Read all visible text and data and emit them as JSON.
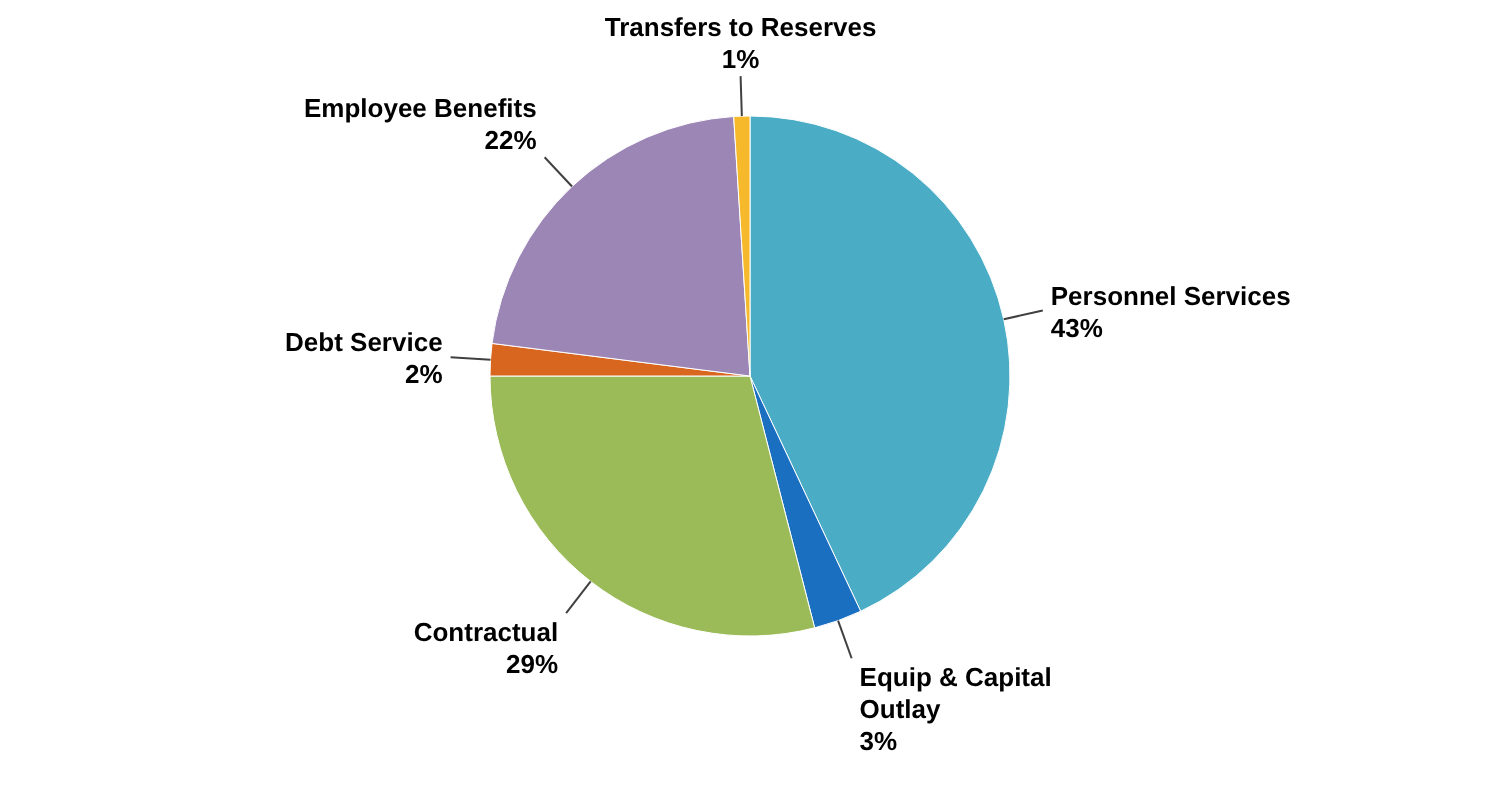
{
  "chart_data": {
    "type": "pie",
    "categories": [
      "Personnel Services",
      "Equip & Capital Outlay",
      "Contractual",
      "Debt Service",
      "Employee Benefits",
      "Transfers to Reserves"
    ],
    "values": [
      43,
      3,
      29,
      2,
      22,
      1
    ],
    "value_labels": [
      "43%",
      "3%",
      "29%",
      "2%",
      "22%",
      "1%"
    ],
    "colors": [
      "#4bacc6",
      "#1b6fc0",
      "#9bbb59",
      "#d9661f",
      "#9b86b6",
      "#f6b92b"
    ]
  }
}
